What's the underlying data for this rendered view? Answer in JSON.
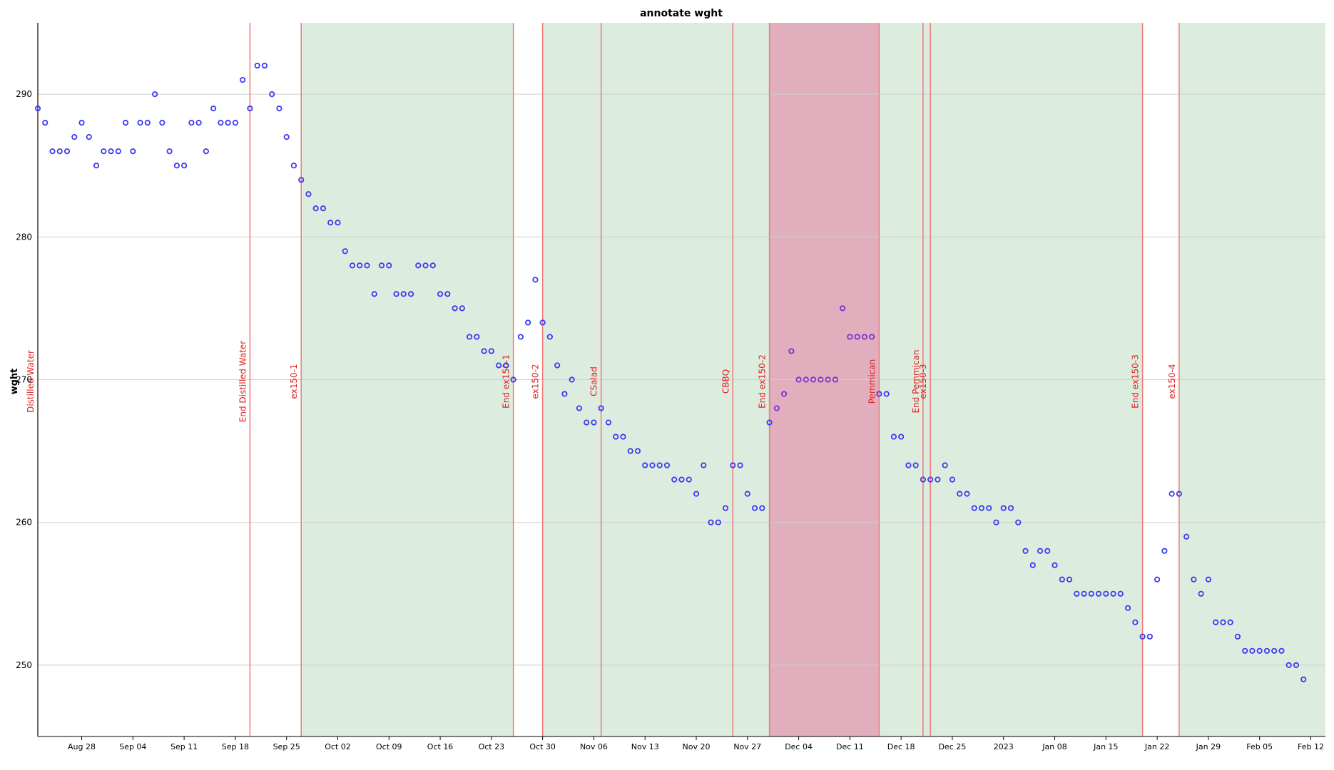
{
  "chart_data": {
    "type": "scatter",
    "title": "annotate wght",
    "ylabel": "wght",
    "xlabel": "",
    "ylim": [
      245,
      295
    ],
    "yticks": [
      250,
      260,
      270,
      280,
      290
    ],
    "xlim": [
      "2022-08-22",
      "2023-02-14"
    ],
    "x_tick_labels": [
      {
        "date": "2022-08-28",
        "label": "Aug 28"
      },
      {
        "date": "2022-09-04",
        "label": "Sep 04"
      },
      {
        "date": "2022-09-11",
        "label": "Sep 11"
      },
      {
        "date": "2022-09-18",
        "label": "Sep 18"
      },
      {
        "date": "2022-09-25",
        "label": "Sep 25"
      },
      {
        "date": "2022-10-02",
        "label": "Oct 02"
      },
      {
        "date": "2022-10-09",
        "label": "Oct 09"
      },
      {
        "date": "2022-10-16",
        "label": "Oct 16"
      },
      {
        "date": "2022-10-23",
        "label": "Oct 23"
      },
      {
        "date": "2022-10-30",
        "label": "Oct 30"
      },
      {
        "date": "2022-11-06",
        "label": "Nov 06"
      },
      {
        "date": "2022-11-13",
        "label": "Nov 13"
      },
      {
        "date": "2022-11-20",
        "label": "Nov 20"
      },
      {
        "date": "2022-11-27",
        "label": "Nov 27"
      },
      {
        "date": "2022-12-04",
        "label": "Dec 04"
      },
      {
        "date": "2022-12-11",
        "label": "Dec 11"
      },
      {
        "date": "2022-12-18",
        "label": "Dec 18"
      },
      {
        "date": "2022-12-25",
        "label": "Dec 25"
      },
      {
        "date": "2023-01-01",
        "label": "2023"
      },
      {
        "date": "2023-01-08",
        "label": "Jan 08"
      },
      {
        "date": "2023-01-15",
        "label": "Jan 15"
      },
      {
        "date": "2023-01-22",
        "label": "Jan 22"
      },
      {
        "date": "2023-01-29",
        "label": "Jan 29"
      },
      {
        "date": "2023-02-05",
        "label": "Feb 05"
      },
      {
        "date": "2023-02-12",
        "label": "Feb 12"
      }
    ],
    "grid": true,
    "shaded_regions": [
      {
        "start": "2022-09-27",
        "end": "2022-10-26",
        "color": "#dcede0"
      },
      {
        "start": "2022-10-30",
        "end": "2022-11-30",
        "color": "#dcede0"
      },
      {
        "start": "2022-11-30",
        "end": "2022-12-15",
        "color": "#e0aebc"
      },
      {
        "start": "2022-12-15",
        "end": "2023-01-20",
        "color": "#dcede0"
      },
      {
        "start": "2023-01-25",
        "end": "2023-02-14",
        "color": "#dcede0"
      }
    ],
    "annotations": [
      {
        "date": "2022-08-22",
        "label": "Distilled Water"
      },
      {
        "date": "2022-09-20",
        "label": "End Distilled Water"
      },
      {
        "date": "2022-09-27",
        "label": "ex150-1"
      },
      {
        "date": "2022-10-26",
        "label": "End ex150-1"
      },
      {
        "date": "2022-10-30",
        "label": "ex150-2"
      },
      {
        "date": "2022-11-07",
        "label": "CSalad"
      },
      {
        "date": "2022-11-25",
        "label": "CBBQ"
      },
      {
        "date": "2022-11-30",
        "label": "End ex150-2"
      },
      {
        "date": "2022-12-15",
        "label": "Pemmican"
      },
      {
        "date": "2022-12-21",
        "label": "End Pemmican"
      },
      {
        "date": "2022-12-22",
        "label": "ex150-3"
      },
      {
        "date": "2023-01-20",
        "label": "End ex150-3"
      },
      {
        "date": "2023-01-25",
        "label": "ex150-4"
      }
    ],
    "series": [
      {
        "color": "#3b3bf0",
        "alt_color": "#8030d0",
        "start_date": "2022-08-22",
        "values": [
          289,
          288,
          286,
          286,
          286,
          287,
          288,
          287,
          285,
          286,
          286,
          286,
          288,
          286,
          288,
          288,
          290,
          288,
          286,
          285,
          285,
          288,
          288,
          286,
          289,
          288,
          288,
          288,
          291,
          289,
          292,
          292,
          290,
          289,
          287,
          285,
          284,
          283,
          282,
          282,
          281,
          281,
          279,
          278,
          278,
          278,
          276,
          278,
          278,
          276,
          276,
          276,
          278,
          278,
          278,
          276,
          276,
          275,
          275,
          273,
          273,
          272,
          272,
          271,
          271,
          270,
          273,
          274,
          277,
          274,
          273,
          271,
          269,
          270,
          268,
          267,
          267,
          268,
          267,
          266,
          266,
          265,
          265,
          264,
          264,
          264,
          264,
          263,
          263,
          263,
          262,
          264,
          260,
          260,
          261,
          264,
          264,
          262,
          261,
          261,
          267,
          268,
          269,
          272,
          270,
          270,
          270,
          270,
          270,
          270,
          275,
          273,
          273,
          273,
          273,
          269,
          269,
          266,
          266,
          264,
          264,
          263,
          263,
          263,
          264,
          263,
          262,
          262,
          261,
          261,
          261,
          260,
          261,
          261,
          260,
          258,
          257,
          258,
          258,
          257,
          256,
          256,
          255,
          255,
          255,
          255,
          255,
          255,
          255,
          254,
          253,
          252,
          252,
          256,
          258,
          262,
          262,
          259,
          256,
          255,
          256,
          253,
          253,
          253,
          252,
          251,
          251,
          251,
          251,
          251,
          251,
          250,
          250,
          249
        ]
      }
    ]
  }
}
